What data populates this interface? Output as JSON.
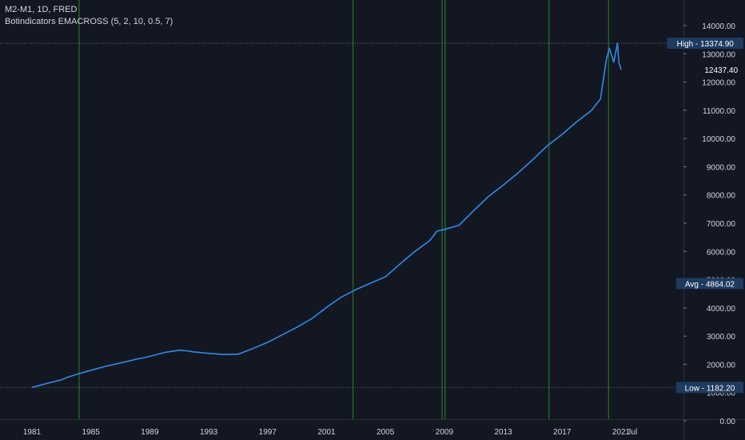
{
  "legend": {
    "symbol_line": "M2-M1, 1D, FRED",
    "indicator_line": "Botindicators EMACROSS (5, 2, 10, 0.5, 7)"
  },
  "colors": {
    "background": "#131722",
    "series": "#2f8be6",
    "signal": "#1f6e27",
    "grid": "#2a2e39",
    "text": "#d1d4dc",
    "label_bg": "#1e3a5f"
  },
  "chart_data": {
    "type": "line",
    "title": "M2-M1, 1D, FRED",
    "x_ticks": [
      "1981",
      "1985",
      "1989",
      "1993",
      "1997",
      "2001",
      "2005",
      "2009",
      "2013",
      "2017",
      "2021",
      "Jul"
    ],
    "y_ticks": [
      "0.00",
      "1000.00",
      "2000.00",
      "3000.00",
      "4000.00",
      "5000.00",
      "6000.00",
      "7000.00",
      "8000.00",
      "9000.00",
      "10000.00",
      "11000.00",
      "12000.00",
      "13000.00",
      "14000.00"
    ],
    "ylim": [
      0,
      14000
    ],
    "xlim": [
      1980.1,
      2021.85
    ],
    "series": [
      {
        "x": [
          1981.0,
          1982.0,
          1983.0,
          1983.5,
          1984.0,
          1985.0,
          1986.0,
          1987.0,
          1988.0,
          1989.0,
          1990.0,
          1991.0,
          1991.5,
          1992.0,
          1993.0,
          1994.0,
          1995.0,
          1996.0,
          1997.0,
          1998.0,
          1999.0,
          2000.0,
          2001.0,
          2002.0,
          2003.0,
          2004.0,
          2005.0,
          2006.0,
          2007.0,
          2008.0,
          2008.5,
          2009.0,
          2010.0,
          2011.0,
          2012.0,
          2013.0,
          2014.0,
          2015.0,
          2016.0,
          2017.0,
          2018.0,
          2019.0,
          2019.6,
          2020.0,
          2020.2,
          2020.5,
          2020.75,
          2020.85,
          2021.0
        ],
        "y": [
          1182.2,
          1320,
          1450,
          1560,
          1640,
          1790,
          1930,
          2050,
          2170,
          2280,
          2420,
          2500,
          2480,
          2440,
          2390,
          2350,
          2360,
          2560,
          2780,
          3050,
          3320,
          3620,
          4020,
          4380,
          4650,
          4880,
          5100,
          5560,
          6000,
          6380,
          6720,
          6780,
          6930,
          7450,
          7950,
          8350,
          8780,
          9250,
          9750,
          10150,
          10600,
          11000,
          11400,
          12800,
          13200,
          12700,
          13374.9,
          12700,
          12437.4
        ]
      }
    ],
    "signals": [
      1984.2,
      2002.8,
      2008.85,
      2009.05,
      2016.1,
      2020.15
    ],
    "markers": {
      "high": {
        "label": "High",
        "value": "13374.90"
      },
      "last": {
        "value": "12437.40"
      },
      "avg": {
        "label": "Avg",
        "value": "4864.02"
      },
      "low": {
        "label": "Low",
        "value": "1182.20"
      }
    }
  }
}
